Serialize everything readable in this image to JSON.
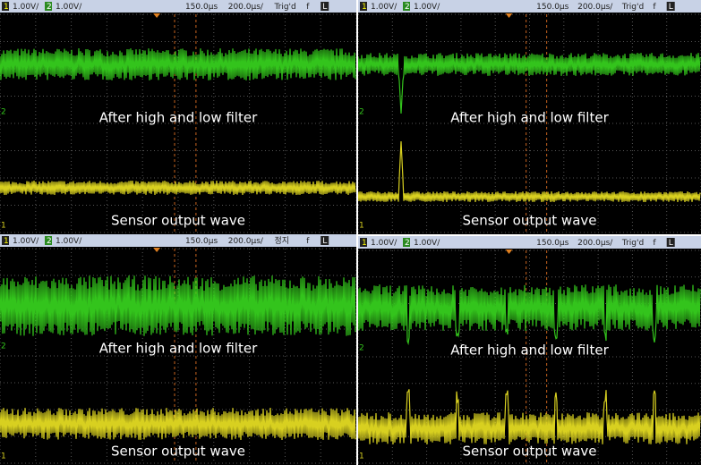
{
  "panels": [
    {
      "header": {
        "ch1": "1",
        "ch1_scale": "1.00V/",
        "ch2": "2",
        "ch2_scale": "1.00V/",
        "delay": "150.0µs",
        "timebase": "200.0µs/",
        "status": "Trig'd",
        "trigger": "f",
        "mode": "L"
      },
      "top_label": "After  high and low filter",
      "bottom_label": "Sensor output wave"
    },
    {
      "header": {
        "ch1": "1",
        "ch1_scale": "1.00V/",
        "ch2": "2",
        "ch2_scale": "1.00V/",
        "delay": "150.0µs",
        "timebase": "200.0µs/",
        "status": "Trig'd",
        "trigger": "f",
        "mode": "L"
      },
      "top_label": "After  high and low filter",
      "bottom_label": "Sensor output wave"
    },
    {
      "header": {
        "ch1": "1",
        "ch1_scale": "1.00V/",
        "ch2": "2",
        "ch2_scale": "1.00V/",
        "delay": "150.0µs",
        "timebase": "200.0µs/",
        "status": "정지",
        "trigger": "f",
        "mode": "L"
      },
      "top_label": "After  high and low filter",
      "bottom_label": "Sensor output wave"
    },
    {
      "header": {
        "ch1": "1",
        "ch1_scale": "1.00V/",
        "ch2": "2",
        "ch2_scale": "1.00V/",
        "delay": "150.0µs",
        "timebase": "200.0µs/",
        "status": "Trig'd",
        "trigger": "f",
        "mode": "L"
      },
      "top_label": "After  high and low filter",
      "bottom_label": "Sensor output wave"
    }
  ]
}
